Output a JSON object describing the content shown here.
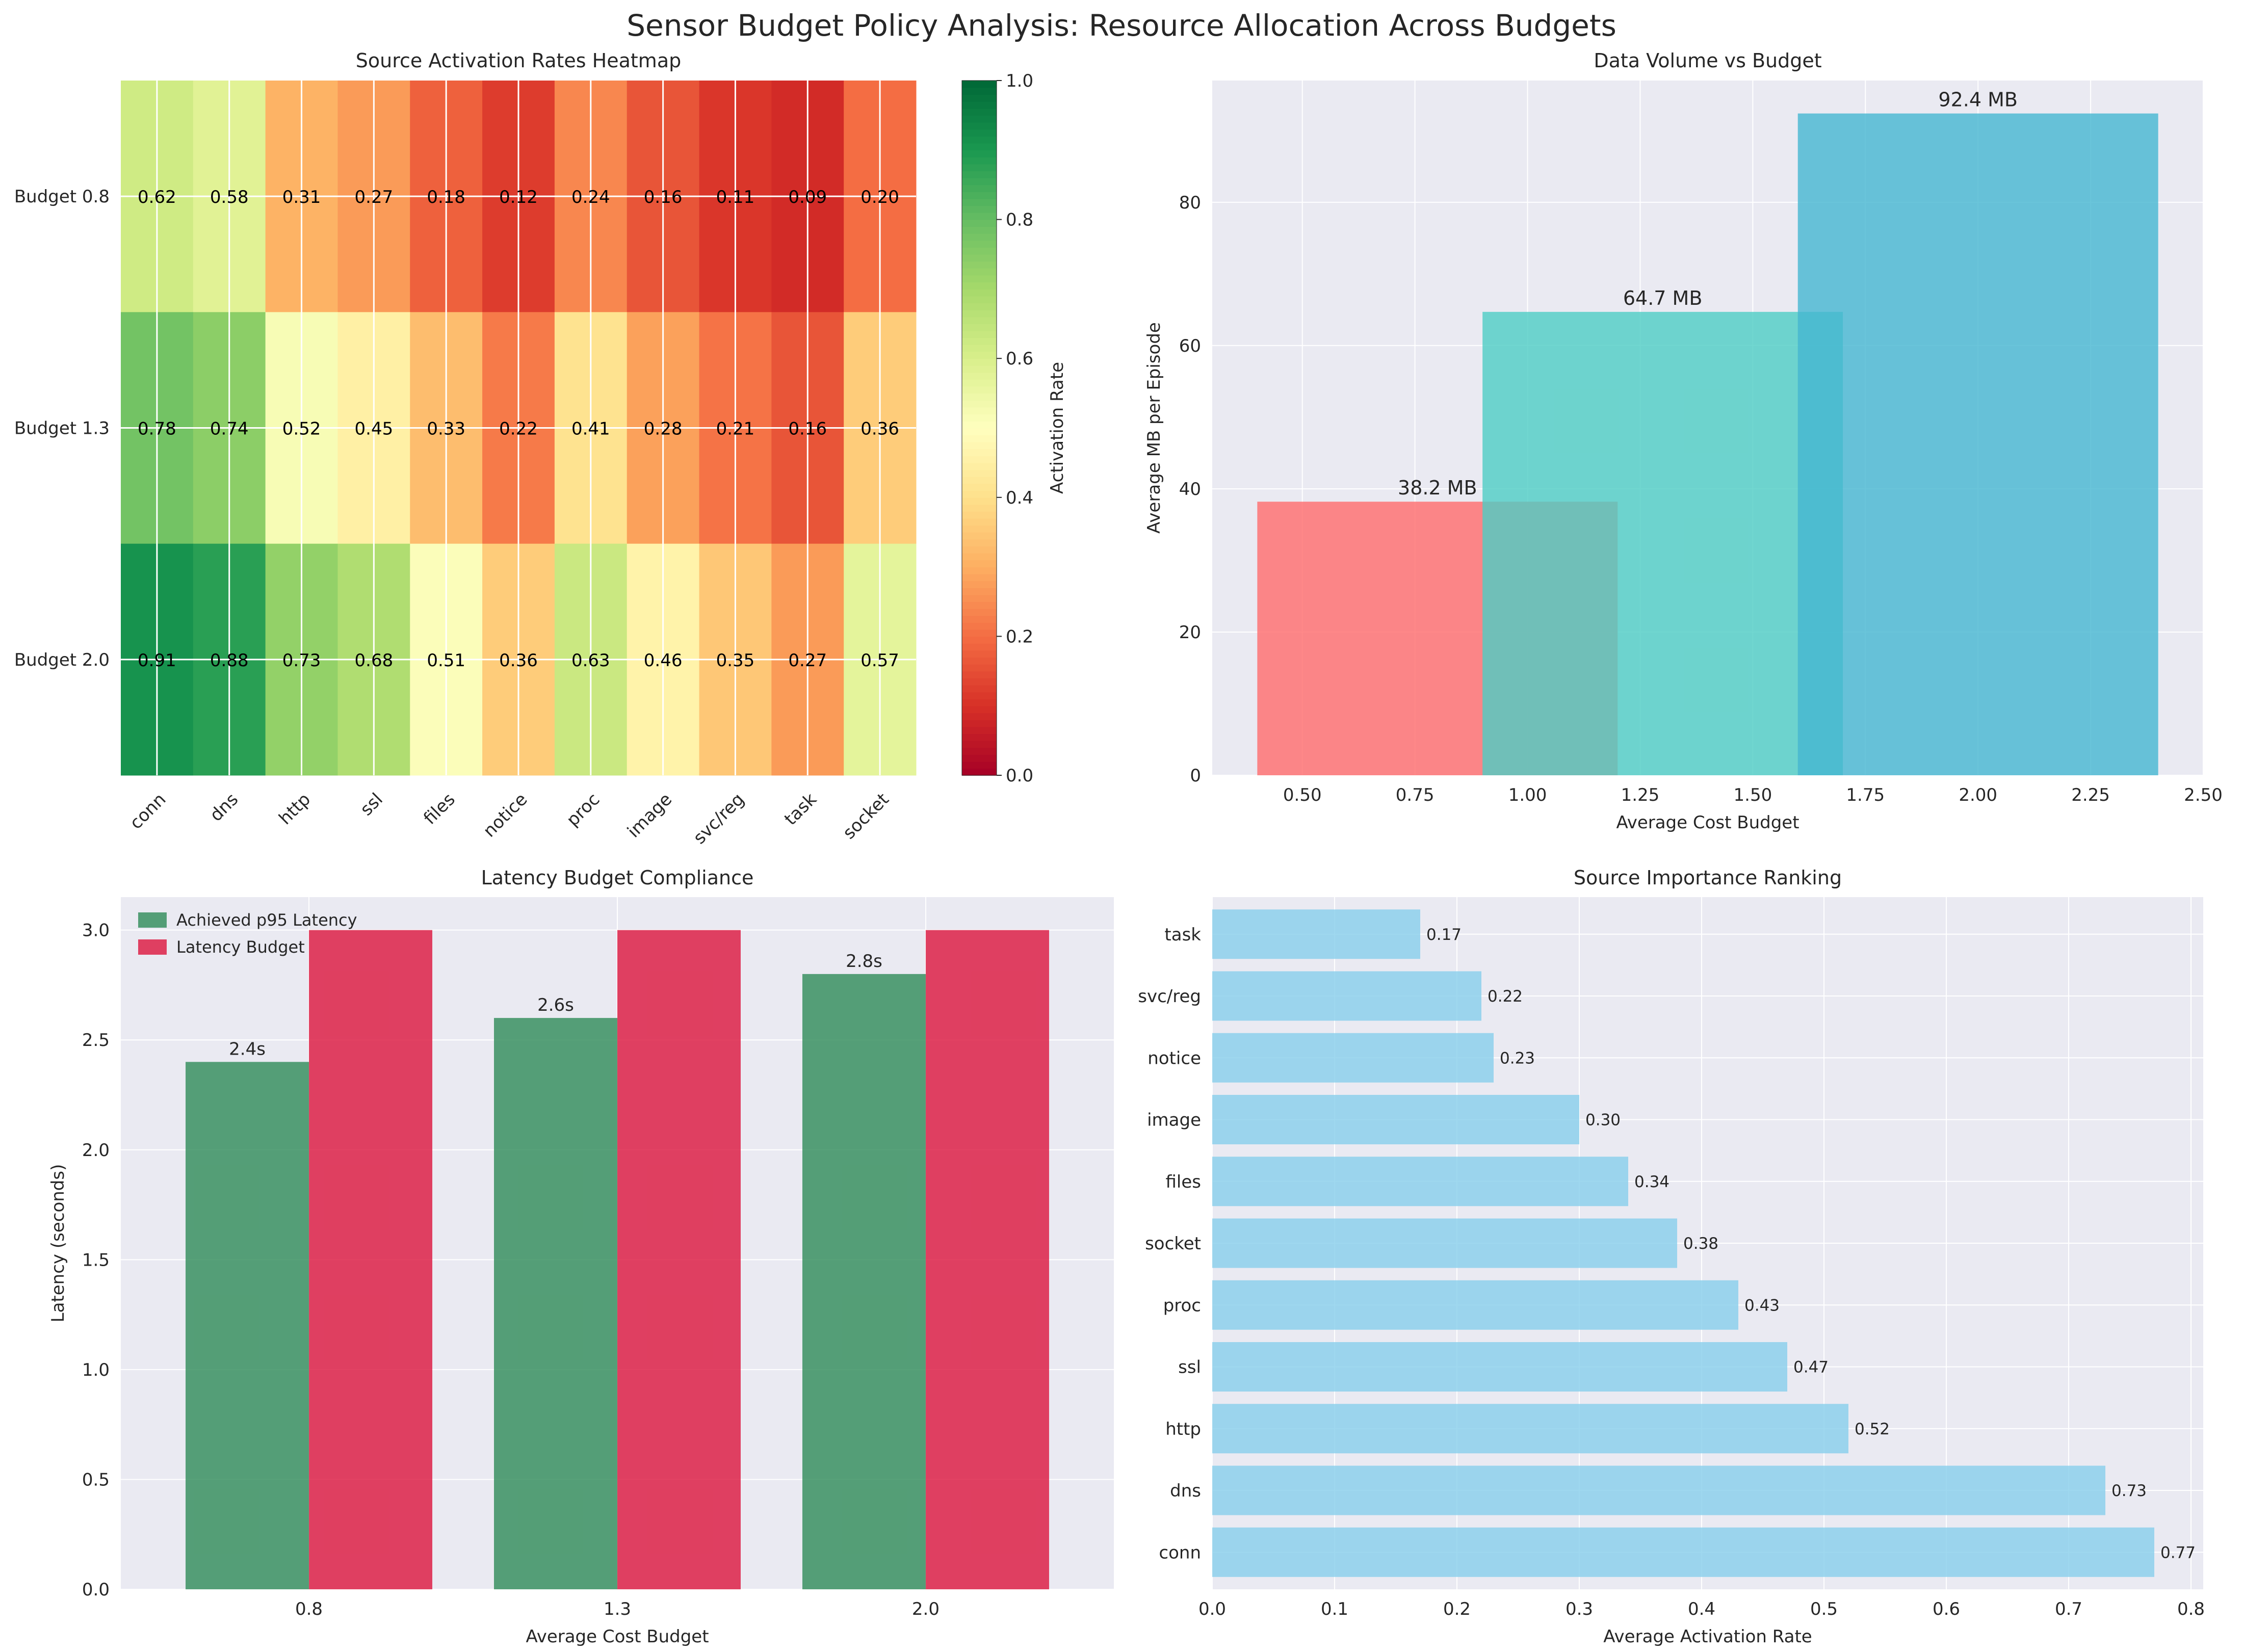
{
  "figure": {
    "title": "Sensor Budget Policy Analysis: Resource Allocation Across Budgets"
  },
  "colors": {
    "panel_bg": "#eaeaf2",
    "grid": "#ffffff",
    "cyan": "#4ecdc4",
    "coral": "#ff6b6b",
    "blue": "#45b7d1",
    "achieved": "#2e8b57",
    "budget": "#dc143c",
    "importance": "#87ceeb"
  },
  "chart_data": [
    {
      "id": "heatmap",
      "type": "heatmap",
      "title": "Source Activation Rates Heatmap",
      "rows": [
        "Budget 0.8",
        "Budget 1.3",
        "Budget 2.0"
      ],
      "columns": [
        "conn",
        "dns",
        "http",
        "ssl",
        "files",
        "notice",
        "proc",
        "image",
        "svc/reg",
        "task",
        "socket"
      ],
      "values": [
        [
          0.62,
          0.58,
          0.31,
          0.27,
          0.18,
          0.12,
          0.24,
          0.16,
          0.11,
          0.09,
          0.2
        ],
        [
          0.78,
          0.74,
          0.52,
          0.45,
          0.33,
          0.22,
          0.41,
          0.28,
          0.21,
          0.16,
          0.36
        ],
        [
          0.91,
          0.88,
          0.73,
          0.68,
          0.51,
          0.36,
          0.63,
          0.46,
          0.35,
          0.27,
          0.57
        ]
      ],
      "cell_labels": [
        [
          "0.62",
          "0.58",
          "0.31",
          "0.27",
          "0.18",
          "0.12",
          "0.24",
          "0.16",
          "0.11",
          "0.09",
          "0.20"
        ],
        [
          "0.78",
          "0.74",
          "0.52",
          "0.45",
          "0.33",
          "0.22",
          "0.41",
          "0.28",
          "0.21",
          "0.16",
          "0.36"
        ],
        [
          "0.91",
          "0.88",
          "0.73",
          "0.68",
          "0.51",
          "0.36",
          "0.63",
          "0.46",
          "0.35",
          "0.27",
          "0.57"
        ]
      ],
      "colormap": "RdYlGn",
      "colorbar": {
        "label": "Activation Rate",
        "range": [
          0.0,
          1.0
        ],
        "ticks": [
          0.0,
          0.2,
          0.4,
          0.6,
          0.8,
          1.0
        ],
        "tick_labels": [
          "0.0",
          "0.2",
          "0.4",
          "0.6",
          "0.8",
          "1.0"
        ]
      }
    },
    {
      "id": "volume",
      "type": "bar",
      "title": "Data Volume vs Budget",
      "xlabel": "Average Cost Budget",
      "ylabel": "Average MB per Episode",
      "xlim": [
        0.3,
        2.5
      ],
      "ylim": [
        0,
        97
      ],
      "xticks": [
        0.5,
        0.75,
        1.0,
        1.25,
        1.5,
        1.75,
        2.0,
        2.25,
        2.5
      ],
      "xtick_labels": [
        "0.50",
        "0.75",
        "1.00",
        "1.25",
        "1.50",
        "1.75",
        "2.00",
        "2.25",
        "2.50"
      ],
      "yticks": [
        0,
        20,
        40,
        60,
        80
      ],
      "ytick_labels": [
        "0",
        "20",
        "40",
        "60",
        "80"
      ],
      "bars": [
        {
          "x": 0.8,
          "width": 0.8,
          "value": 38.2,
          "label": "38.2 MB",
          "color": "#ff6b6b"
        },
        {
          "x": 1.3,
          "width": 0.8,
          "value": 64.7,
          "label": "64.7 MB",
          "color": "#4ecdc4"
        },
        {
          "x": 2.0,
          "width": 0.8,
          "value": 92.4,
          "label": "92.4 MB",
          "color": "#45b7d1"
        }
      ],
      "alpha": 0.8
    },
    {
      "id": "latency",
      "type": "bar",
      "title": "Latency Budget Compliance",
      "xlabel": "Average Cost Budget",
      "ylabel": "Latency (seconds)",
      "categories": [
        "0.8",
        "1.3",
        "2.0"
      ],
      "series": [
        {
          "name": "Achieved p95 Latency",
          "values": [
            2.4,
            2.6,
            2.8
          ],
          "labels": [
            "2.4s",
            "2.6s",
            "2.8s"
          ],
          "color": "#2e8b57"
        },
        {
          "name": "Latency Budget",
          "values": [
            3.0,
            3.0,
            3.0
          ],
          "color": "#dc143c"
        }
      ],
      "ylim": [
        0,
        3.15
      ],
      "yticks": [
        0.0,
        0.5,
        1.0,
        1.5,
        2.0,
        2.5,
        3.0
      ],
      "ytick_labels": [
        "0.0",
        "0.5",
        "1.0",
        "1.5",
        "2.0",
        "2.5",
        "3.0"
      ],
      "legend": "top-left"
    },
    {
      "id": "importance",
      "type": "bar",
      "orientation": "horizontal",
      "title": "Source Importance Ranking",
      "xlabel": "Average Activation Rate",
      "categories": [
        "conn",
        "dns",
        "http",
        "ssl",
        "proc",
        "socket",
        "files",
        "image",
        "notice",
        "svc/reg",
        "task"
      ],
      "values": [
        0.77,
        0.73,
        0.52,
        0.47,
        0.43,
        0.38,
        0.34,
        0.3,
        0.23,
        0.22,
        0.17
      ],
      "labels": [
        "0.77",
        "0.73",
        "0.52",
        "0.47",
        "0.43",
        "0.38",
        "0.34",
        "0.30",
        "0.23",
        "0.22",
        "0.17"
      ],
      "xlim": [
        0,
        0.81
      ],
      "xticks": [
        0.0,
        0.1,
        0.2,
        0.3,
        0.4,
        0.5,
        0.6,
        0.7,
        0.8
      ],
      "xtick_labels": [
        "0.0",
        "0.1",
        "0.2",
        "0.3",
        "0.4",
        "0.5",
        "0.6",
        "0.7",
        "0.8"
      ],
      "color": "#87ceeb"
    }
  ]
}
